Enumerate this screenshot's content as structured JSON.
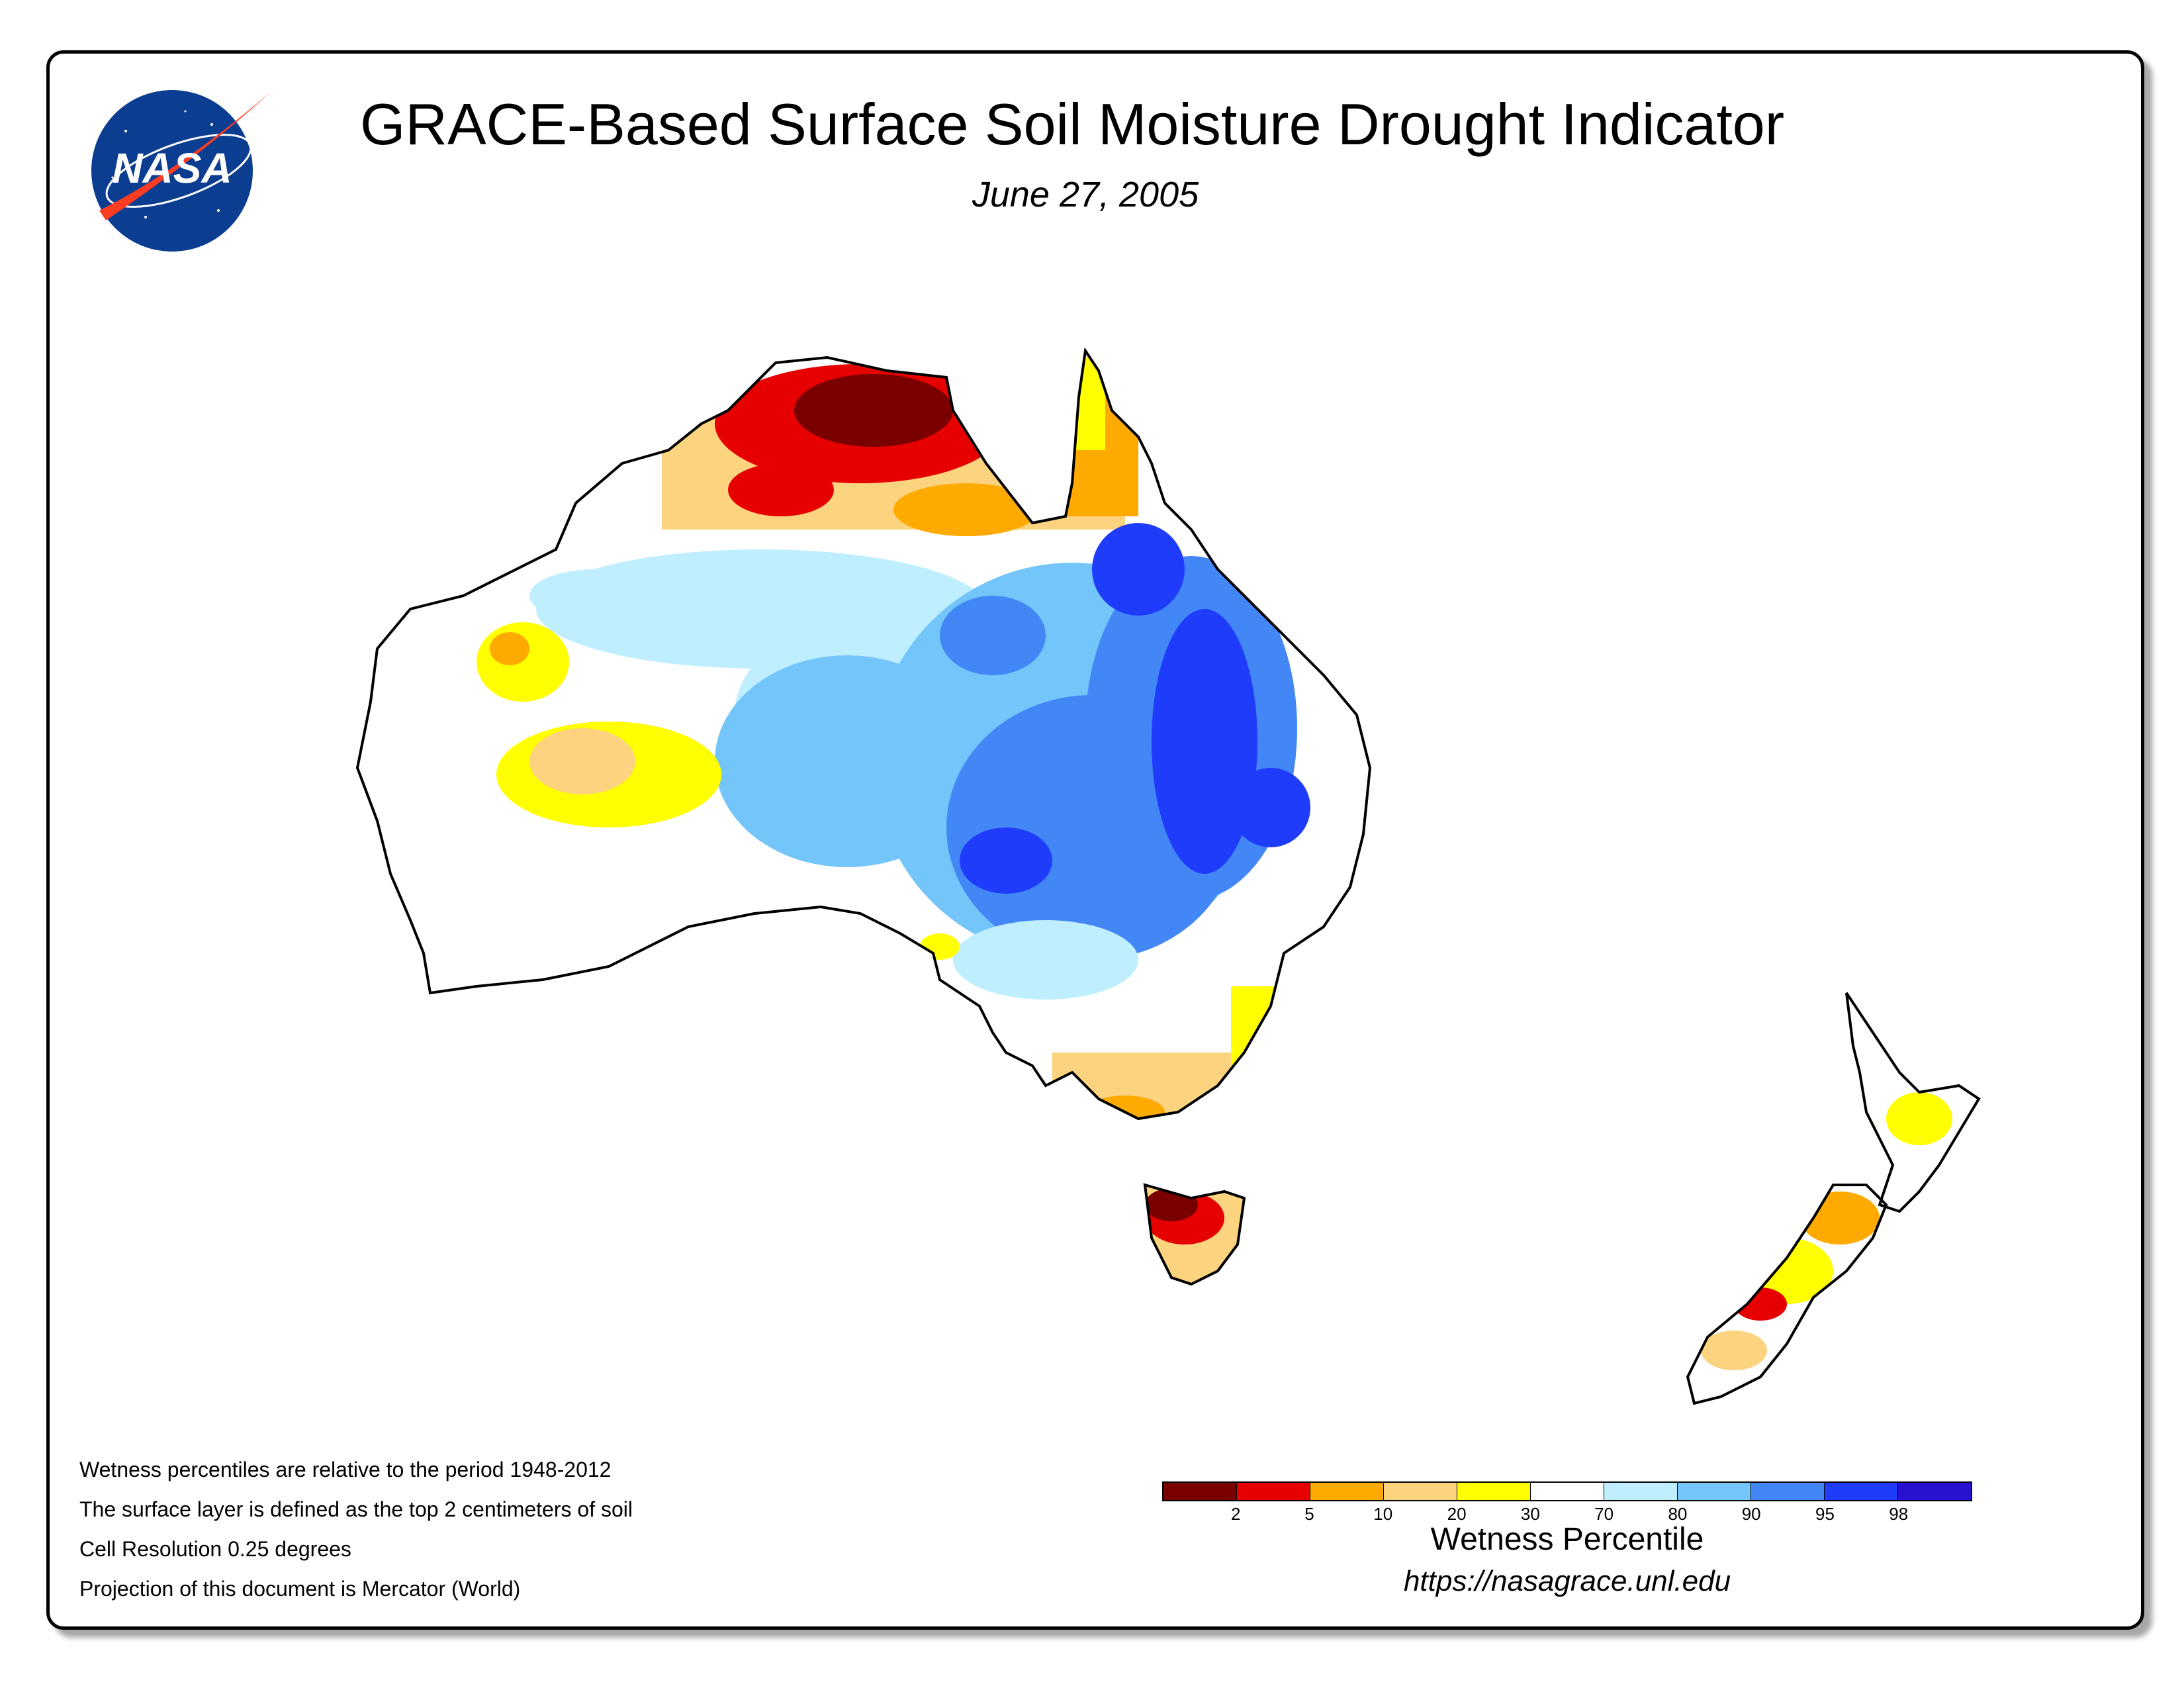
{
  "header": {
    "logo_text": "NASA",
    "title": "GRACE-Based Surface Soil Moisture Drought Indicator",
    "date": "June 27, 2005"
  },
  "notes": [
    "Wetness percentiles are relative to the period 1948-2012",
    "The surface layer is defined as the top 2 centimeters of soil",
    "Cell Resolution 0.25 degrees",
    "Projection of this document is Mercator (World)"
  ],
  "legend": {
    "title": "Wetness Percentile",
    "colors": [
      "#7a0000",
      "#e60000",
      "#ffaa00",
      "#fcd37f",
      "#ffff00",
      "#ffffff",
      "#bfefff",
      "#73c5fa",
      "#4287f5",
      "#1f3cfa",
      "#2811d1"
    ],
    "ticks": [
      "2",
      "5",
      "10",
      "20",
      "30",
      "70",
      "80",
      "90",
      "95",
      "98"
    ]
  },
  "footer": {
    "url": "https://nasagrace.unl.edu"
  }
}
